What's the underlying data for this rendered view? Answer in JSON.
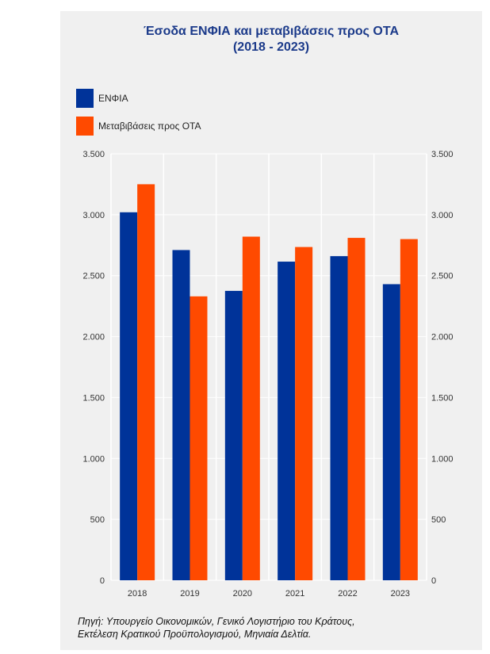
{
  "chart_data": {
    "type": "bar",
    "title": "Έσοδα ΕΝΦΙΑ και μεταβιβάσεις προς ΟΤΑ",
    "subtitle": "(2018 - 2023)",
    "categories": [
      "2018",
      "2019",
      "2020",
      "2021",
      "2022",
      "2023"
    ],
    "series": [
      {
        "name": "ΕΝΦΙΑ",
        "color": "#003399",
        "values": [
          3020,
          2710,
          2375,
          2615,
          2660,
          2430
        ]
      },
      {
        "name": "Μεταβιβάσεις προς ΟΤΑ",
        "color": "#ff4a00",
        "values": [
          3250,
          2330,
          2820,
          2735,
          2810,
          2800
        ]
      }
    ],
    "ylim": [
      0,
      3500
    ],
    "yticks": [
      0,
      500,
      1000,
      1500,
      2000,
      2500,
      3000,
      3500
    ],
    "ytick_labels": [
      "0",
      "500",
      "1.000",
      "1.500",
      "2.000",
      "2.500",
      "3.000",
      "3.500"
    ],
    "grid": true,
    "legend_position": "top-left",
    "dual_y_axis_labels": true
  },
  "source_line1": "Πηγή: Υπουργείο Οικονομικών, Γενικό Λογιστήριο του Κράτους,",
  "source_line2": "Εκτέλεση Κρατικού Προϋπολογισμού, Μηνιαία Δελτία."
}
